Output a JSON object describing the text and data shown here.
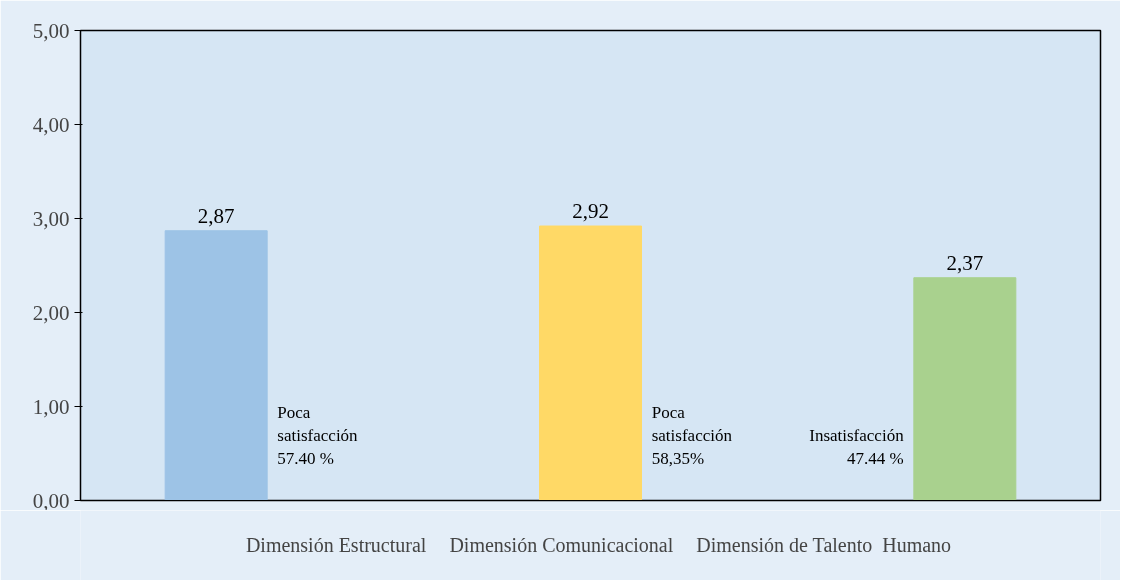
{
  "chart_data": {
    "type": "bar",
    "categories": [
      null
    ],
    "series": [
      {
        "name": "Dimensión Estructural",
        "color": "#9dc3e6",
        "values": [
          2.87
        ],
        "value_labels": [
          "2,87"
        ]
      },
      {
        "name": "Dimensión Comunicacional",
        "color": "#ffd966",
        "values": [
          2.92
        ],
        "value_labels": [
          "2,92"
        ]
      },
      {
        "name": "Dimensión de Talento  Humano",
        "color": "#a9d18e",
        "values": [
          2.37
        ],
        "value_labels": [
          "2,37"
        ]
      }
    ],
    "ylim": [
      0,
      5
    ],
    "yticks": [
      {
        "value": 0,
        "label": "0,00"
      },
      {
        "value": 1,
        "label": "1,00"
      },
      {
        "value": 2,
        "label": "2,00"
      },
      {
        "value": 3,
        "label": "3,00"
      },
      {
        "value": 4,
        "label": "4,00"
      },
      {
        "value": 5,
        "label": "5,00"
      }
    ],
    "annotations": [
      "Poca\nsatisfacción\n57.40 %",
      "Poca\nsatisfacción\n58,35%",
      "Insatisfacción\n47.44 %"
    ],
    "grid": false,
    "legend": "bottom"
  }
}
